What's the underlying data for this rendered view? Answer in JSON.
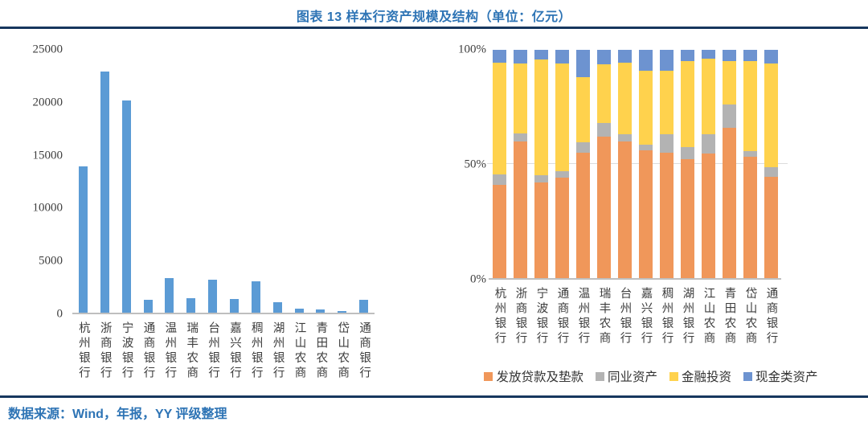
{
  "header": {
    "title": "图表 13 样本行资产规模及结构（单位：亿元）"
  },
  "footer": {
    "source": "数据来源：Wind，年报，YY 评级整理"
  },
  "colors": {
    "title_blue": "#2E74B5",
    "divider_navy": "#17375E",
    "axis_text": "#404040",
    "baseline_gray": "#BFBFBF",
    "gridline_gray": "#DCDCDC"
  },
  "banks": [
    "杭州银行",
    "浙商银行",
    "宁波银行",
    "通商银行",
    "温州银行",
    "瑞丰农商",
    "台州银行",
    "嘉兴银行",
    "稠州银行",
    "湖州银行",
    "江山农商",
    "青田农商",
    "岱山农商",
    "通商银行"
  ],
  "chart_data": [
    {
      "type": "bar",
      "title": "样本行资产规模",
      "unit": "亿元",
      "categories": [
        "杭州银行",
        "浙商银行",
        "宁波银行",
        "通商银行",
        "温州银行",
        "瑞丰农商",
        "台州银行",
        "嘉兴银行",
        "稠州银行",
        "湖州银行",
        "江山农商",
        "青田农商",
        "岱山农商",
        "通商银行"
      ],
      "values": [
        13900,
        22900,
        20150,
        1200,
        3300,
        1350,
        3100,
        1300,
        2950,
        1000,
        380,
        300,
        150,
        1250
      ],
      "xlabel": "",
      "ylabel": "",
      "ylim": [
        0,
        25000
      ],
      "yticks": [
        0,
        5000,
        10000,
        15000,
        20000,
        25000
      ],
      "grid": false,
      "bar_color": "#5B9BD5"
    },
    {
      "type": "bar",
      "stacked": true,
      "title": "样本行资产结构",
      "unit": "%",
      "categories": [
        "杭州银行",
        "浙商银行",
        "宁波银行",
        "通商银行",
        "温州银行",
        "瑞丰农商",
        "台州银行",
        "嘉兴银行",
        "稠州银行",
        "湖州银行",
        "江山农商",
        "青田农商",
        "岱山农商",
        "通商银行"
      ],
      "series": [
        {
          "key": "loans",
          "name": "发放贷款及垫款",
          "color": "#F0975A",
          "values": [
            41,
            60,
            42,
            44,
            55,
            62,
            60,
            56,
            55,
            52,
            54.5,
            66,
            53,
            44.5
          ]
        },
        {
          "key": "interbank",
          "name": "同业资产",
          "color": "#B3B3B3",
          "values": [
            4.5,
            3.5,
            3,
            3,
            4.5,
            6,
            3,
            2.5,
            8,
            5.5,
            8.5,
            10,
            2.5,
            4
          ]
        },
        {
          "key": "investment",
          "name": "金融投资",
          "color": "#FFD24D",
          "values": [
            49,
            30.5,
            50.8,
            47,
            28.5,
            25.5,
            31.5,
            32.5,
            28,
            37.5,
            33,
            19,
            39.5,
            45.5
          ]
        },
        {
          "key": "cash",
          "name": "现金类资产",
          "color": "#6D93D0",
          "values": [
            5.5,
            6,
            4.2,
            6,
            12,
            6.5,
            5.5,
            9,
            9,
            5,
            4,
            5,
            5,
            6
          ]
        }
      ],
      "xlabel": "",
      "ylabel": "",
      "ylim": [
        0,
        100
      ],
      "yticks": [
        {
          "label": "0%",
          "value": 0
        },
        {
          "label": "50%",
          "value": 50
        },
        {
          "label": "100%",
          "value": 100
        }
      ],
      "gridlines": [
        50
      ],
      "legend_position": "bottom"
    }
  ]
}
